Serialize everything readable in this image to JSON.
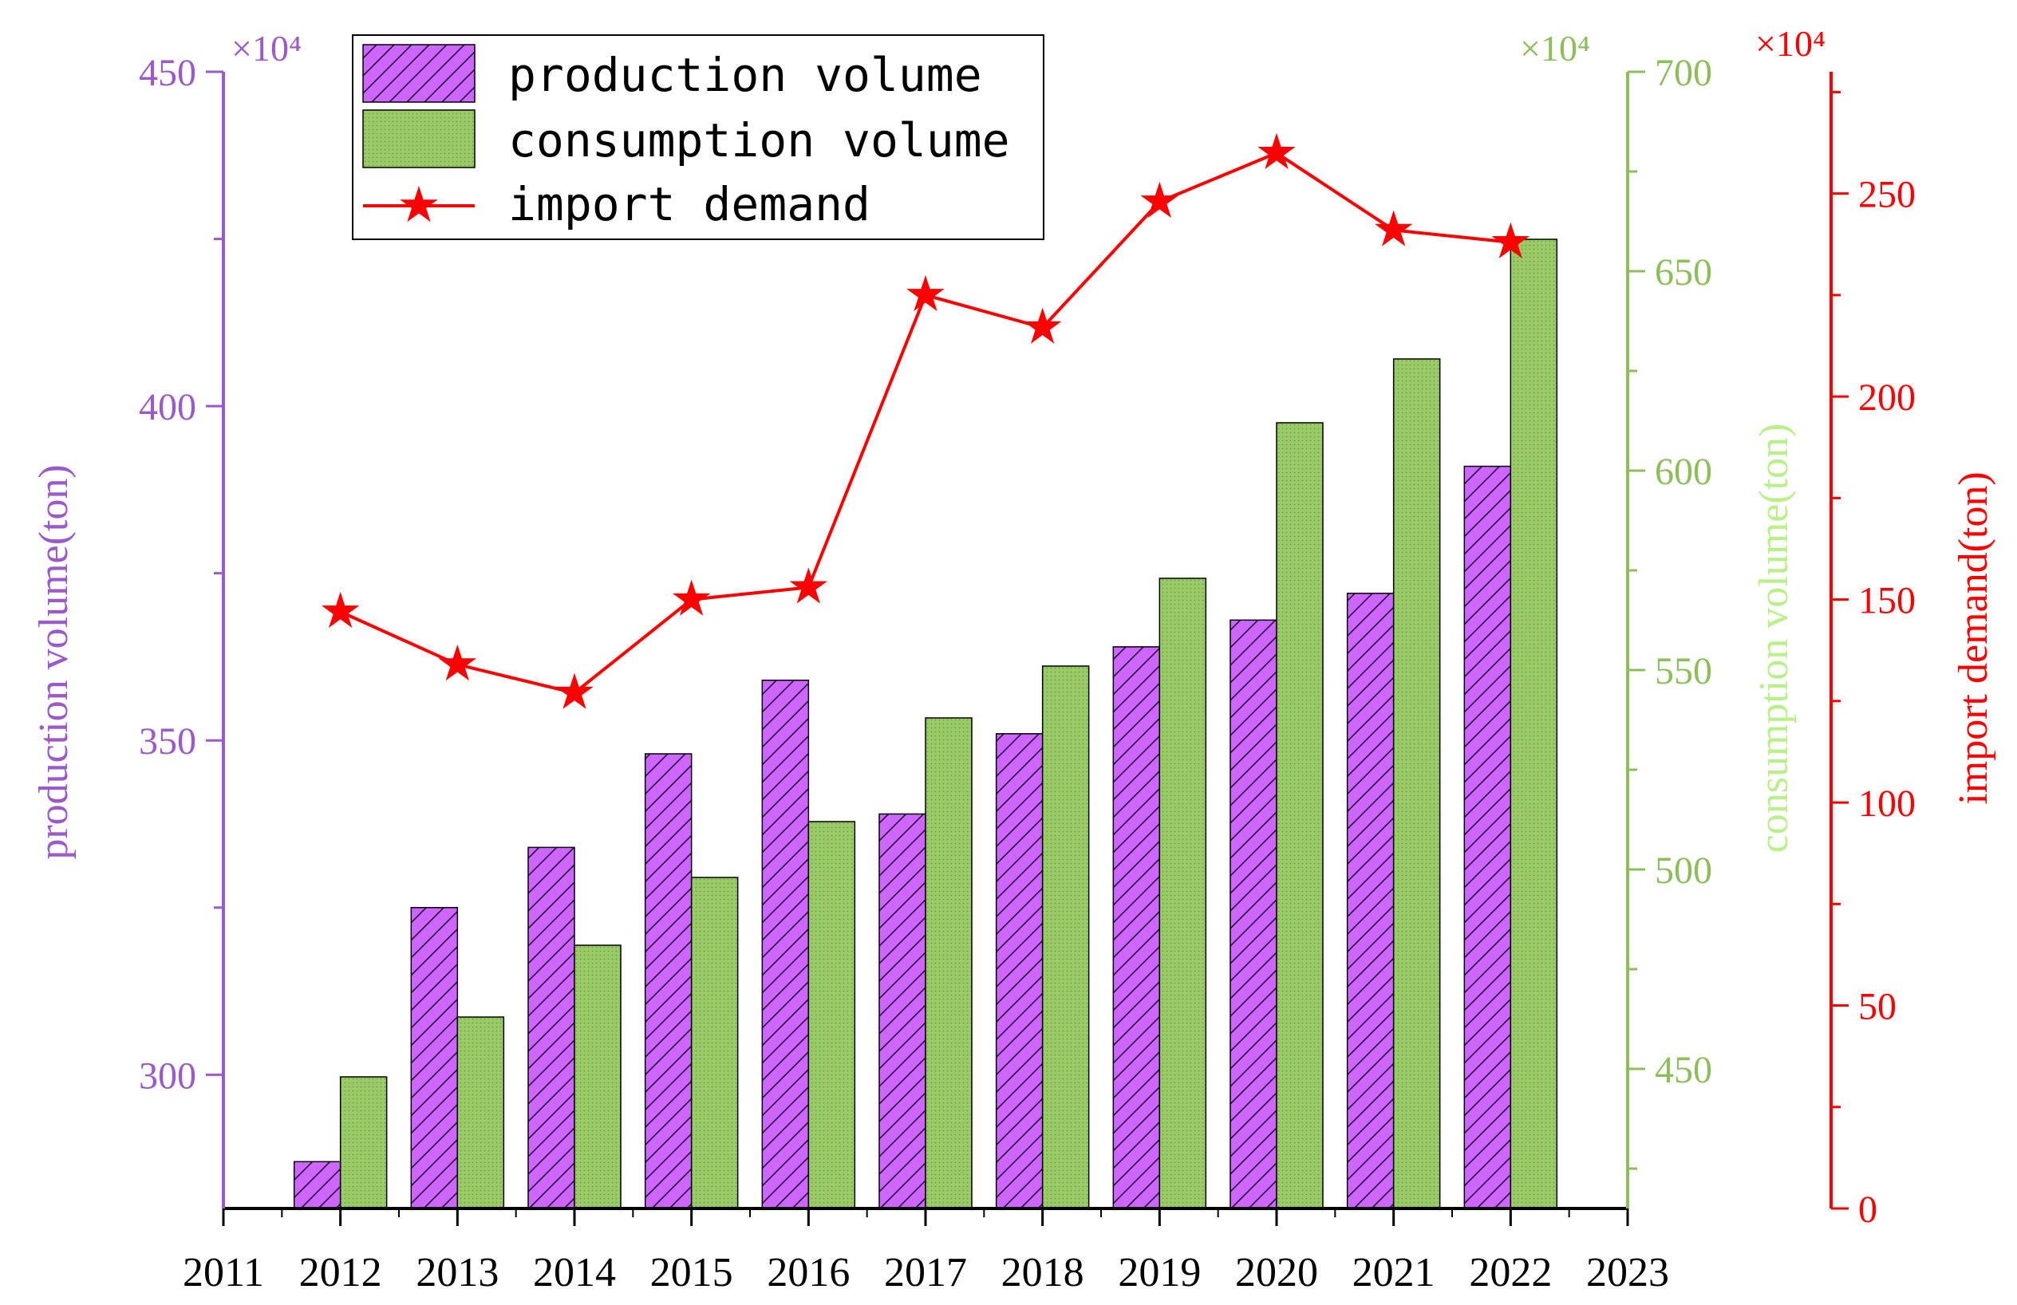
{
  "chart_data": {
    "type": "bar",
    "categories": [
      "2012",
      "2013",
      "2014",
      "2015",
      "2016",
      "2017",
      "2018",
      "2019",
      "2020",
      "2021",
      "2022"
    ],
    "x_axis": {
      "ticks": [
        "2011",
        "2012",
        "2013",
        "2014",
        "2015",
        "2016",
        "2017",
        "2018",
        "2019",
        "2020",
        "2021",
        "2022",
        "2023"
      ]
    },
    "axes": {
      "left": {
        "label": "production volume(ton)",
        "multiplier": "×10⁴",
        "range": [
          280,
          450
        ],
        "ticks": [
          "300",
          "350",
          "400",
          "450"
        ],
        "color": "#9b59c9"
      },
      "right1": {
        "label": "consumption volume(ton)",
        "multiplier": "×10⁴",
        "range": [
          415,
          700
        ],
        "ticks": [
          "450",
          "500",
          "550",
          "600",
          "650",
          "700"
        ],
        "color": "#8cbf5a",
        "label_color": "#b9f08a"
      },
      "right2": {
        "label": "import demand(ton)",
        "multiplier": "×10⁴",
        "range": [
          0,
          280
        ],
        "ticks": [
          "0",
          "50",
          "100",
          "150",
          "200",
          "250"
        ],
        "color": "#ff0000"
      }
    },
    "series": [
      {
        "name": "production volume",
        "type": "bar",
        "axis": "left",
        "color": "#cc66ff",
        "values": [
          287,
          325,
          334,
          348,
          359,
          339,
          351,
          364,
          368,
          372,
          391
        ]
      },
      {
        "name": "consumption volume",
        "type": "bar",
        "axis": "right1",
        "color": "#99cc66",
        "values": [
          448,
          463,
          481,
          498,
          512,
          538,
          551,
          573,
          612,
          628,
          658
        ]
      },
      {
        "name": "import demand",
        "type": "line",
        "marker": "star",
        "axis": "right2",
        "color": "#ff0000",
        "values": [
          147,
          134,
          127,
          150,
          153,
          225,
          217,
          248,
          260,
          241,
          238
        ]
      }
    ],
    "legend": {
      "position": "top-left",
      "entries": [
        "production volume",
        "consumption volume",
        "import demand"
      ]
    }
  }
}
